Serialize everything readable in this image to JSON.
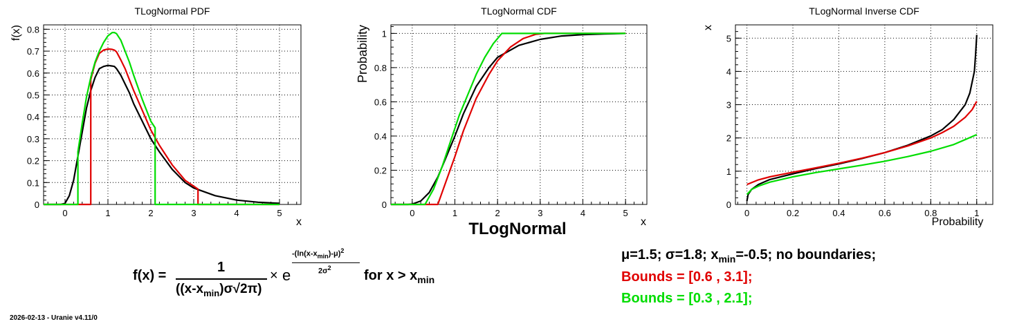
{
  "footer": "2026-02-13 - Uranie v4.11/0",
  "main_title": "TLogNormal",
  "formula": {
    "lhs": "f(x) = ",
    "numerator": "1",
    "denominator": "((x-x",
    "denominator_sub": "min",
    "denominator_rest": ")σ√2π)",
    "times": "×",
    "e": "e",
    "exponent_num": "-(ln(x-x",
    "exponent_sub": "min",
    "exponent_num_rest": ")-μ)",
    "exponent_num_sup": "2",
    "exponent_den": "2σ",
    "exponent_den_sup": "2",
    "condition": "for x > x",
    "condition_sub": "min"
  },
  "legend": {
    "line1_pre": "μ=1.5;  σ=1.8;  x",
    "line1_sub": "min",
    "line1_post": "=-0.5;   no boundaries;",
    "line2": "Bounds = [0.6 , 3.1];",
    "line3": "Bounds = [0.3 , 2.1];"
  },
  "colors": {
    "black": "#000000",
    "red": "#e00000",
    "green": "#00dd00"
  },
  "chart_data": [
    {
      "type": "line",
      "title": "TLogNormal PDF",
      "xlabel": "x",
      "ylabel": "f(x)",
      "xlim": [
        -0.5,
        5.5
      ],
      "ylim": [
        0,
        0.82
      ],
      "xticks": [
        0,
        1,
        2,
        3,
        4,
        5
      ],
      "yticks": [
        0,
        0.1,
        0.2,
        0.3,
        0.4,
        0.5,
        0.6,
        0.7,
        0.8
      ],
      "grid": true,
      "series": [
        {
          "color": "black",
          "x": [
            -0.5,
            -0.1,
            0.0,
            0.1,
            0.2,
            0.3,
            0.4,
            0.5,
            0.6,
            0.7,
            0.8,
            0.9,
            1.0,
            1.1,
            1.15,
            1.2,
            1.3,
            1.4,
            1.5,
            1.6,
            1.8,
            2.0,
            2.2,
            2.5,
            2.8,
            3.0,
            3.5,
            4.0,
            4.5,
            5.0
          ],
          "y": [
            0,
            0,
            0.005,
            0.04,
            0.11,
            0.22,
            0.33,
            0.44,
            0.52,
            0.58,
            0.62,
            0.63,
            0.635,
            0.632,
            0.63,
            0.62,
            0.59,
            0.55,
            0.51,
            0.46,
            0.38,
            0.3,
            0.24,
            0.16,
            0.1,
            0.075,
            0.04,
            0.02,
            0.01,
            0.005
          ]
        },
        {
          "color": "red",
          "x": [
            -0.5,
            0.6,
            0.6,
            0.7,
            0.8,
            0.9,
            1.0,
            1.1,
            1.15,
            1.2,
            1.3,
            1.4,
            1.5,
            1.6,
            1.8,
            2.0,
            2.2,
            2.5,
            2.8,
            3.1,
            3.1,
            5.0
          ],
          "y": [
            0,
            0,
            0.57,
            0.645,
            0.69,
            0.705,
            0.71,
            0.708,
            0.705,
            0.697,
            0.66,
            0.62,
            0.57,
            0.52,
            0.43,
            0.34,
            0.27,
            0.18,
            0.11,
            0.07,
            0,
            0
          ]
        },
        {
          "color": "green",
          "x": [
            -0.5,
            0.3,
            0.3,
            0.4,
            0.5,
            0.6,
            0.7,
            0.8,
            0.9,
            1.0,
            1.1,
            1.15,
            1.2,
            1.3,
            1.4,
            1.5,
            1.6,
            1.8,
            2.0,
            2.1,
            2.1,
            5.0
          ],
          "y": [
            0,
            0,
            0.24,
            0.37,
            0.49,
            0.58,
            0.65,
            0.7,
            0.74,
            0.77,
            0.785,
            0.785,
            0.78,
            0.75,
            0.7,
            0.65,
            0.59,
            0.48,
            0.38,
            0.35,
            0,
            0
          ]
        }
      ]
    },
    {
      "type": "line",
      "title": "TLogNormal CDF",
      "xlabel": "x",
      "ylabel": "Probability",
      "xlim": [
        -0.5,
        5.5
      ],
      "ylim": [
        0,
        1.05
      ],
      "xticks": [
        0,
        1,
        2,
        3,
        4,
        5
      ],
      "yticks": [
        0,
        0.2,
        0.4,
        0.6,
        0.8,
        1
      ],
      "grid": true,
      "series": [
        {
          "color": "black",
          "x": [
            -0.5,
            -0.1,
            0.0,
            0.2,
            0.4,
            0.6,
            0.8,
            1.0,
            1.2,
            1.5,
            1.8,
            2.0,
            2.5,
            3.0,
            3.5,
            4.0,
            4.5,
            5.0
          ],
          "y": [
            0,
            0,
            0.002,
            0.02,
            0.07,
            0.16,
            0.28,
            0.4,
            0.53,
            0.69,
            0.8,
            0.86,
            0.93,
            0.965,
            0.985,
            0.993,
            0.997,
            1.0
          ]
        },
        {
          "color": "red",
          "x": [
            -0.5,
            0.6,
            0.8,
            1.0,
            1.2,
            1.5,
            1.8,
            2.0,
            2.3,
            2.6,
            2.9,
            3.1,
            3.5,
            5.0
          ],
          "y": [
            0,
            0,
            0.14,
            0.28,
            0.43,
            0.62,
            0.76,
            0.84,
            0.92,
            0.97,
            0.995,
            1.0,
            1.0,
            1.0
          ]
        },
        {
          "color": "green",
          "x": [
            -0.5,
            0.3,
            0.5,
            0.7,
            0.9,
            1.1,
            1.3,
            1.5,
            1.7,
            1.9,
            2.1,
            2.5,
            5.0
          ],
          "y": [
            0,
            0,
            0.09,
            0.22,
            0.37,
            0.52,
            0.64,
            0.76,
            0.86,
            0.94,
            1.0,
            1.0,
            1.0
          ]
        }
      ]
    },
    {
      "type": "line",
      "title": "TLogNormal Inverse CDF",
      "xlabel": "Probability",
      "ylabel": "x",
      "xlim": [
        -0.05,
        1.07
      ],
      "ylim": [
        0,
        5.4
      ],
      "xticks": [
        0,
        0.2,
        0.4,
        0.6,
        0.8,
        1
      ],
      "yticks": [
        0,
        1,
        2,
        3,
        4,
        5
      ],
      "grid": true,
      "series": [
        {
          "color": "black",
          "x": [
            0.0,
            0.005,
            0.02,
            0.05,
            0.1,
            0.2,
            0.3,
            0.4,
            0.5,
            0.6,
            0.7,
            0.8,
            0.85,
            0.9,
            0.95,
            0.97,
            0.99,
            0.995,
            1.0
          ],
          "y": [
            0.1,
            0.3,
            0.45,
            0.6,
            0.75,
            0.92,
            1.08,
            1.22,
            1.38,
            1.56,
            1.78,
            2.06,
            2.25,
            2.55,
            3.0,
            3.35,
            4.0,
            4.5,
            5.1
          ]
        },
        {
          "color": "red",
          "x": [
            0.0,
            0.05,
            0.1,
            0.2,
            0.3,
            0.4,
            0.5,
            0.6,
            0.7,
            0.8,
            0.85,
            0.9,
            0.95,
            0.98,
            1.0
          ],
          "y": [
            0.6,
            0.74,
            0.83,
            0.97,
            1.1,
            1.24,
            1.39,
            1.56,
            1.76,
            2.0,
            2.16,
            2.35,
            2.62,
            2.85,
            3.1
          ]
        },
        {
          "color": "green",
          "x": [
            0.0,
            0.02,
            0.05,
            0.1,
            0.2,
            0.3,
            0.4,
            0.5,
            0.6,
            0.7,
            0.8,
            0.9,
            1.0
          ],
          "y": [
            0.3,
            0.45,
            0.55,
            0.67,
            0.83,
            0.96,
            1.07,
            1.18,
            1.3,
            1.44,
            1.6,
            1.8,
            2.1
          ]
        }
      ]
    }
  ]
}
